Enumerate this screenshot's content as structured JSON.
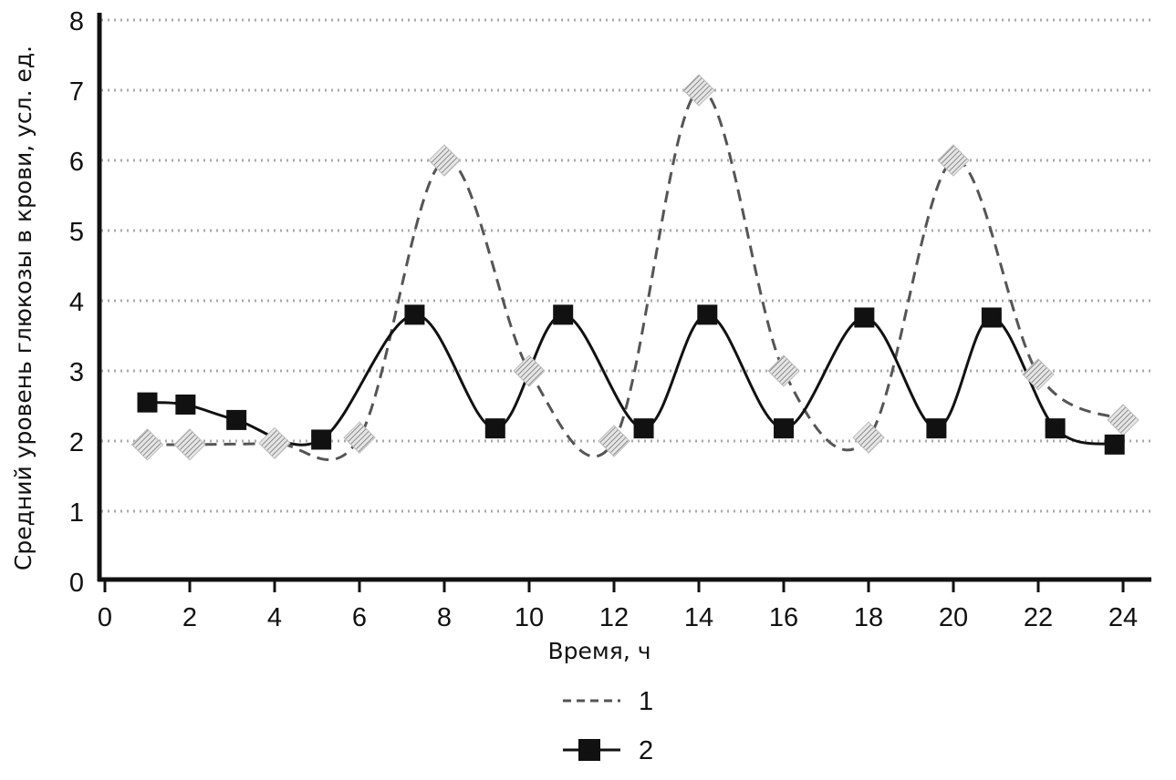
{
  "chart_data": {
    "type": "line",
    "xlabel": "Время, ч",
    "ylabel": "Средний уровень глюкозы в крови, усл. ед.",
    "xlim": [
      0,
      25
    ],
    "ylim": [
      0,
      8
    ],
    "x_ticks": [
      0,
      2,
      4,
      6,
      8,
      10,
      12,
      14,
      16,
      18,
      20,
      22,
      24
    ],
    "y_ticks": [
      0,
      1,
      2,
      3,
      4,
      5,
      6,
      7,
      8
    ],
    "grid": "horizontal dotted",
    "legend_position": "bottom-center",
    "series": [
      {
        "name": "1",
        "line_style": "dashed",
        "marker": "hatched-diamond",
        "color": "#555555",
        "x": [
          1,
          2,
          4,
          6,
          8,
          10,
          12,
          14,
          16,
          18,
          20,
          22,
          24
        ],
        "y": [
          1.95,
          1.95,
          1.97,
          2.05,
          6.0,
          3.0,
          2.0,
          7.0,
          3.0,
          2.05,
          6.0,
          2.95,
          2.3
        ]
      },
      {
        "name": "2",
        "line_style": "solid",
        "marker": "square",
        "color": "#111111",
        "x": [
          1.0,
          1.9,
          3.1,
          5.1,
          7.3,
          9.2,
          10.8,
          12.7,
          14.2,
          16.0,
          17.9,
          19.6,
          20.9,
          22.4,
          23.8
        ],
        "y": [
          2.55,
          2.52,
          2.3,
          2.02,
          3.8,
          2.18,
          3.8,
          2.18,
          3.8,
          2.18,
          3.76,
          2.18,
          3.76,
          2.18,
          1.95
        ]
      }
    ]
  }
}
